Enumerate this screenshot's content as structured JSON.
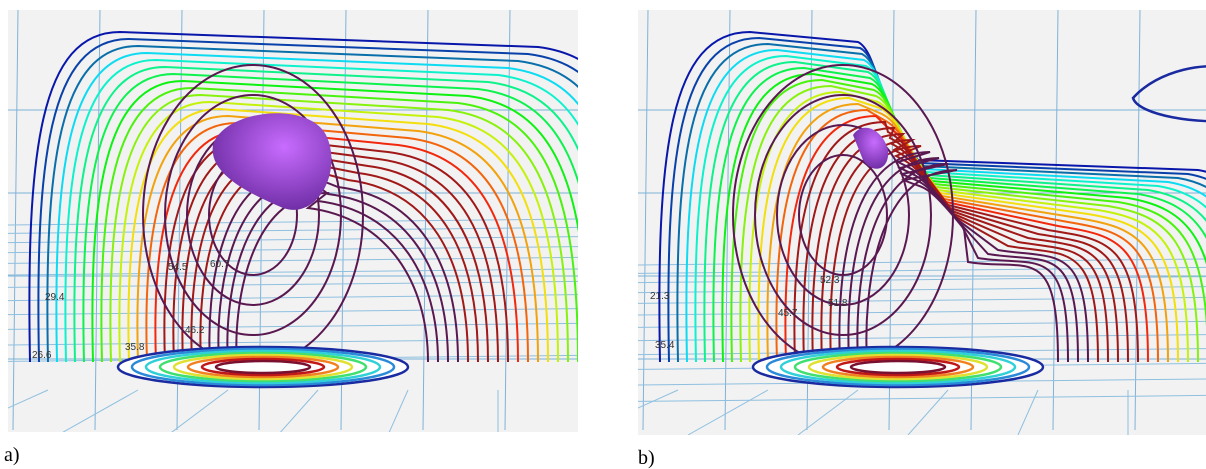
{
  "panels": [
    {
      "label": "a)",
      "contour_labels": [
        "60.7",
        "54.5",
        "46.2",
        "35.8",
        "29.4",
        "26.6"
      ]
    },
    {
      "label": "b)",
      "contour_labels": [
        "52.3",
        "45.7",
        "51.8",
        "21.3",
        "35.4"
      ]
    }
  ]
}
